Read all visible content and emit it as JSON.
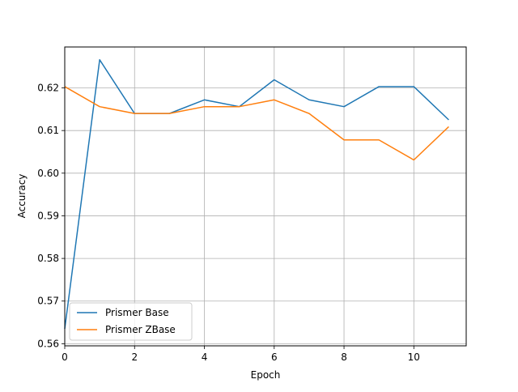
{
  "chart_data": {
    "type": "line",
    "xlabel": "Epoch",
    "ylabel": "Accuracy",
    "xlim": [
      0,
      11.5
    ],
    "ylim": [
      0.5595,
      0.6296
    ],
    "xticks": [
      0,
      2,
      4,
      6,
      8,
      10
    ],
    "yticks": [
      0.56,
      0.57,
      0.58,
      0.59,
      0.6,
      0.61,
      0.62
    ],
    "ytick_labels": [
      "0.56",
      "0.57",
      "0.58",
      "0.59",
      "0.60",
      "0.61",
      "0.62"
    ],
    "grid": true,
    "legend_position": "lower-left",
    "x": [
      0,
      1,
      2,
      3,
      4,
      5,
      6,
      7,
      8,
      9,
      10,
      11
    ],
    "series": [
      {
        "name": "Prismer Base",
        "color": "#1f77b4",
        "values": [
          0.5635,
          0.6266,
          0.614,
          0.614,
          0.6172,
          0.6156,
          0.6219,
          0.6172,
          0.6156,
          0.6203,
          0.6203,
          0.6125
        ]
      },
      {
        "name": "Prismer ZBase",
        "color": "#ff7f0e",
        "values": [
          0.6203,
          0.6156,
          0.614,
          0.614,
          0.6156,
          0.6156,
          0.6172,
          0.614,
          0.6078,
          0.6078,
          0.6031,
          0.6109
        ]
      }
    ]
  }
}
